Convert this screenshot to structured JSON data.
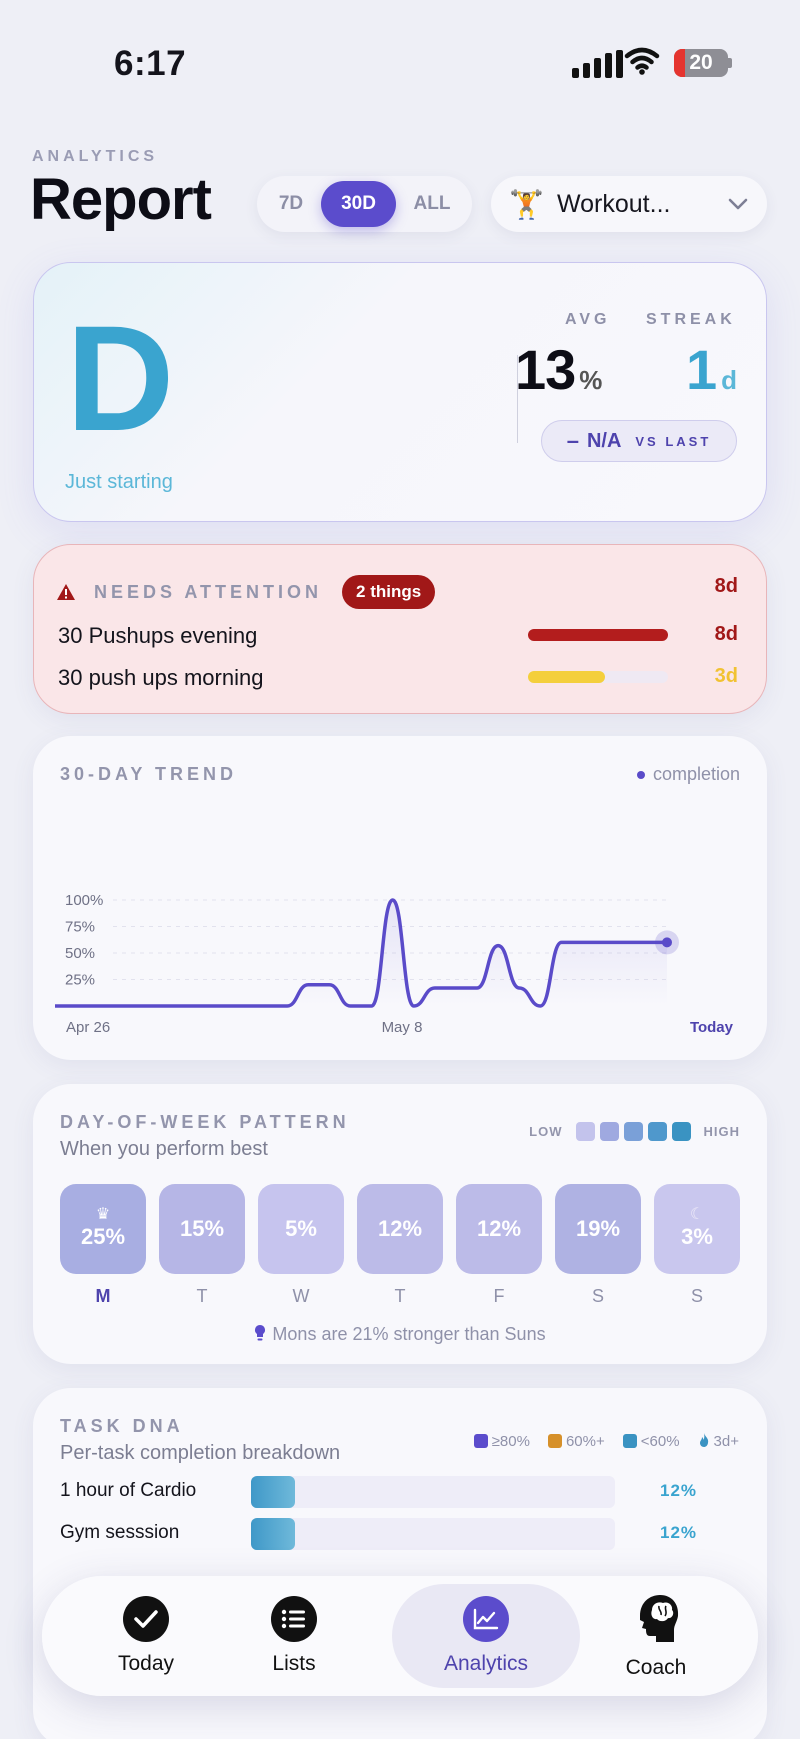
{
  "status": {
    "time": "6:17",
    "battery": "20",
    "battery_level": 0.2
  },
  "header": {
    "eyebrow": "ANALYTICS",
    "title": "Report",
    "ranges": [
      "7D",
      "30D",
      "ALL"
    ],
    "selected_range": "30D",
    "list_picker": {
      "emoji": "🏋️",
      "label": "Workout..."
    }
  },
  "summary": {
    "grade": "D",
    "grade_caption": "Just starting",
    "avg_label": "AVG",
    "avg_value": "13",
    "avg_unit": "%",
    "streak_label": "STREAK",
    "streak_value": "1",
    "streak_unit": "d",
    "vs_dash": "–",
    "vs_value": "N/A",
    "vs_label": "VS LAST"
  },
  "attention": {
    "title": "NEEDS ATTENTION",
    "badge": "2 things",
    "header_days": "8d",
    "items": [
      {
        "name": "30 Pushups evening",
        "days": "8d",
        "level": 1.0,
        "color": "#b31d1d",
        "days_color": "#a11818"
      },
      {
        "name": "30 push ups morning",
        "days": "3d",
        "level": 0.55,
        "color": "#f4cf3c",
        "days_color": "#f1c232"
      }
    ]
  },
  "trend": {
    "title": "30-DAY TREND",
    "legend": "completion",
    "x_labels": [
      "Apr 26",
      "May 8",
      "Today"
    ],
    "y_labels": [
      "100%",
      "75%",
      "50%",
      "25%"
    ]
  },
  "chart_data": {
    "type": "line",
    "title": "30-DAY TREND",
    "x": [
      1,
      2,
      3,
      4,
      5,
      6,
      7,
      8,
      9,
      10,
      11,
      12,
      13,
      14,
      15,
      16,
      17,
      18,
      19,
      20,
      21,
      22,
      23,
      24,
      25,
      26,
      27,
      28,
      29,
      30
    ],
    "x_tick_labels": [
      "Apr 26",
      "May 8",
      "Today"
    ],
    "series": [
      {
        "name": "completion",
        "values": [
          0,
          0,
          0,
          0,
          0,
          0,
          0,
          0,
          0,
          0,
          0,
          0,
          20,
          20,
          0,
          0,
          100,
          0,
          17,
          17,
          17,
          57,
          17,
          0,
          60,
          60,
          60,
          60,
          60,
          60
        ]
      }
    ],
    "ylim": [
      0,
      100
    ],
    "y_ticks": [
      "25%",
      "50%",
      "75%",
      "100%"
    ],
    "grid": true,
    "legend": "top-right"
  },
  "dow": {
    "title": "DAY-OF-WEEK PATTERN",
    "subtitle": "When you perform best",
    "scale_low": "LOW",
    "scale_high": "HIGH",
    "scale_colors": [
      "#c3c3ec",
      "#9fa9e0",
      "#7aa0d8",
      "#4f98cc",
      "#3a93c2"
    ],
    "days": [
      {
        "label": "M",
        "value": "25%",
        "icon": "♛",
        "icon_name": "crown-icon",
        "color": "#a8aee2",
        "best": true
      },
      {
        "label": "T",
        "value": "15%",
        "icon": "",
        "color": "#b6b6e6",
        "best": false
      },
      {
        "label": "W",
        "value": "5%",
        "icon": "",
        "color": "#c6c4ee",
        "best": false
      },
      {
        "label": "T",
        "value": "12%",
        "icon": "",
        "color": "#bcbbe8",
        "best": false
      },
      {
        "label": "F",
        "value": "12%",
        "icon": "",
        "color": "#bcbbe8",
        "best": false
      },
      {
        "label": "S",
        "value": "19%",
        "icon": "",
        "color": "#afb2e3",
        "best": false
      },
      {
        "label": "S",
        "value": "3%",
        "icon": "☾",
        "icon_name": "moon-icon",
        "color": "#c9c7ee",
        "best": false
      }
    ],
    "note": "Mons are 21% stronger than Suns"
  },
  "dna": {
    "title": "TASK DNA",
    "subtitle": "Per-task completion breakdown",
    "legend": [
      {
        "label": "≥80%",
        "color": "#5b4ccc"
      },
      {
        "label": "60%+",
        "color": "#d6902a"
      },
      {
        "label": "<60%",
        "color": "#3a93c2"
      },
      {
        "label": "3d+",
        "icon": "flame-icon"
      }
    ],
    "rows": [
      {
        "name": "1 hour of Cardio",
        "value": "12%",
        "level": 0.12
      },
      {
        "name": "Gym sesssion",
        "value": "12%",
        "level": 0.12
      }
    ]
  },
  "tabs": [
    {
      "label": "Today",
      "icon": "check-icon",
      "active": false
    },
    {
      "label": "Lists",
      "icon": "list-icon",
      "active": false
    },
    {
      "label": "Analytics",
      "icon": "chart-icon",
      "active": true
    },
    {
      "label": "Coach",
      "icon": "brain-head-icon",
      "active": false
    }
  ]
}
